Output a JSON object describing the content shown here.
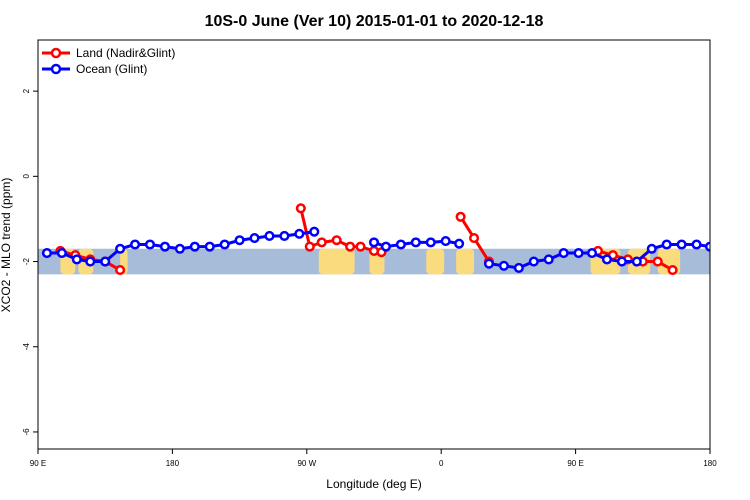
{
  "chart_data": {
    "type": "line",
    "title": "10S-0 June (Ver 10)   2015-01-01 to 2020-12-18",
    "xlabel": "Longitude (deg E)",
    "ylabel": "XCO2 - MLO trend (ppm)",
    "xlim": [
      90,
      540
    ],
    "ylim": [
      -6.4,
      3.2
    ],
    "x_ticks": [
      {
        "value": 90,
        "label": "90 E"
      },
      {
        "value": 180,
        "label": "180"
      },
      {
        "value": 270,
        "label": "90 W"
      },
      {
        "value": 360,
        "label": "0"
      },
      {
        "value": 450,
        "label": "90 E"
      },
      {
        "value": 540,
        "label": "180"
      }
    ],
    "y_ticks": [
      {
        "value": 2,
        "label": "2"
      },
      {
        "value": 0,
        "label": "0"
      },
      {
        "value": -2,
        "label": "-2"
      },
      {
        "value": -4,
        "label": "-4"
      },
      {
        "value": -6,
        "label": "-6"
      }
    ],
    "map_band": {
      "lat_range": "10S-0",
      "y_range": [
        -2.3,
        -1.7
      ],
      "ocean_color": "#a7bcd9",
      "land_color": "#fadb7e",
      "land_segments": [
        [
          105,
          115
        ],
        [
          117,
          127
        ],
        [
          145,
          150
        ],
        [
          278,
          302
        ],
        [
          312,
          322
        ],
        [
          350,
          362
        ],
        [
          370,
          382
        ],
        [
          460,
          480
        ],
        [
          485,
          500
        ],
        [
          505,
          520
        ]
      ]
    },
    "legend_position": "top-left",
    "series": [
      {
        "name": "Land (Nadir&Glint)",
        "color": "#ff0000",
        "segments": [
          {
            "x": [
              105,
              115,
              125,
              135,
              145
            ],
            "y": [
              -1.75,
              -1.85,
              -1.95,
              -2.0,
              -2.2
            ]
          },
          {
            "x": [
              266,
              272,
              280,
              290,
              299,
              306,
              315,
              320
            ],
            "y": [
              -0.75,
              -1.65,
              -1.55,
              -1.5,
              -1.65,
              -1.65,
              -1.75,
              -1.78
            ]
          },
          {
            "x": [
              373,
              382,
              392
            ],
            "y": [
              -0.95,
              -1.45,
              -2.0
            ]
          },
          {
            "x": [
              465,
              475,
              485,
              495,
              505,
              515
            ],
            "y": [
              -1.75,
              -1.85,
              -1.95,
              -2.0,
              -2.0,
              -2.2
            ]
          }
        ]
      },
      {
        "name": "Ocean (Glint)",
        "color": "#0000ff",
        "segments": [
          {
            "x": [
              96,
              106,
              116,
              125,
              135,
              145,
              155,
              165,
              175,
              185,
              195,
              205,
              215,
              225,
              235,
              245,
              255,
              265,
              275
            ],
            "y": [
              -1.8,
              -1.8,
              -1.95,
              -2.0,
              -2.0,
              -1.7,
              -1.6,
              -1.6,
              -1.65,
              -1.7,
              -1.65,
              -1.65,
              -1.6,
              -1.5,
              -1.45,
              -1.4,
              -1.4,
              -1.35,
              -1.3
            ]
          },
          {
            "x": [
              315,
              323,
              333,
              343,
              353,
              363,
              372
            ],
            "y": [
              -1.55,
              -1.65,
              -1.6,
              -1.55,
              -1.55,
              -1.52,
              -1.58
            ]
          },
          {
            "x": [
              392,
              402,
              412,
              422,
              432,
              442,
              452,
              461,
              471,
              481,
              491,
              501,
              511,
              521,
              531,
              540
            ],
            "y": [
              -2.05,
              -2.1,
              -2.15,
              -2.0,
              -1.95,
              -1.8,
              -1.8,
              -1.8,
              -1.95,
              -2.0,
              -2.0,
              -1.7,
              -1.6,
              -1.6,
              -1.6,
              -1.65
            ]
          }
        ]
      }
    ]
  }
}
